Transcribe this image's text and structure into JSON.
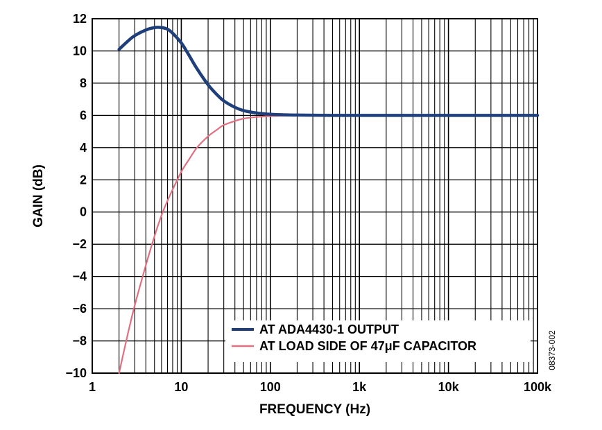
{
  "chart_data": {
    "type": "line",
    "title": "",
    "xlabel": "FREQUENCY (Hz)",
    "ylabel": "GAIN (dB)",
    "x_scale": "log",
    "xlim": [
      1,
      100000
    ],
    "ylim": [
      -10,
      12
    ],
    "x_ticks": [
      1,
      10,
      100,
      1000,
      10000,
      100000
    ],
    "x_tick_labels": [
      "1",
      "10",
      "100",
      "1k",
      "10k",
      "100k"
    ],
    "y_ticks": [
      -10,
      -8,
      -6,
      -4,
      -2,
      0,
      2,
      4,
      6,
      8,
      10,
      12
    ],
    "y_tick_labels": [
      "−10",
      "−8",
      "−6",
      "−4",
      "−2",
      "0",
      "2",
      "4",
      "6",
      "8",
      "10",
      "12"
    ],
    "grid": true,
    "legend_position": "bottom-right",
    "figure_id": "08373-002",
    "series": [
      {
        "name": "AT ADA4430-1 OUTPUT",
        "color": "#1f3f7a",
        "x": [
          2,
          2.5,
          3,
          4,
          5,
          6,
          7,
          8,
          10,
          12,
          15,
          20,
          25,
          30,
          40,
          50,
          70,
          100,
          150,
          200,
          300,
          500,
          1000,
          10000,
          100000
        ],
        "y": [
          10.1,
          10.6,
          10.95,
          11.3,
          11.45,
          11.45,
          11.35,
          11.1,
          10.5,
          9.8,
          8.9,
          7.9,
          7.3,
          6.9,
          6.5,
          6.3,
          6.15,
          6.07,
          6.03,
          6.02,
          6.01,
          6.0,
          6.0,
          6.0,
          6.0
        ]
      },
      {
        "name": "AT LOAD SIDE OF 47μF CAPACITOR",
        "color": "#e07080",
        "x": [
          2,
          2.5,
          3,
          4,
          5,
          6,
          7,
          8,
          10,
          12,
          15,
          20,
          25,
          30,
          40,
          50,
          70,
          100,
          150,
          200,
          300,
          500,
          1000,
          10000,
          100000
        ],
        "y": [
          -10,
          -7.6,
          -5.8,
          -3.3,
          -1.5,
          -0.2,
          0.7,
          1.4,
          2.5,
          3.2,
          4.0,
          4.7,
          5.1,
          5.4,
          5.65,
          5.8,
          5.9,
          5.95,
          5.98,
          5.99,
          6.0,
          6.0,
          6.0,
          6.0,
          6.0
        ]
      }
    ]
  }
}
